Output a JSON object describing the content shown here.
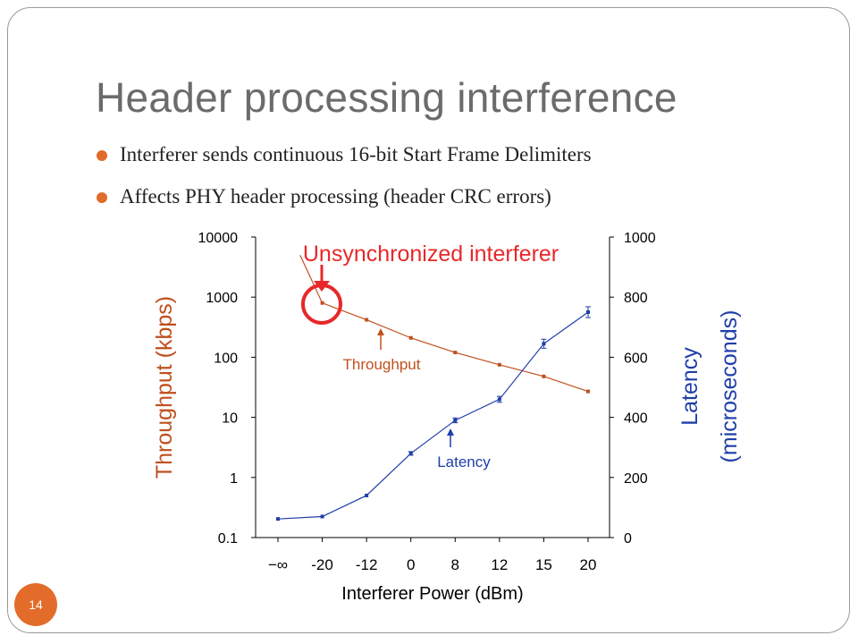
{
  "slide": {
    "title": "Header processing interference",
    "bullets": [
      "Interferer sends continuous 16-bit Start Frame Delimiters",
      "Affects PHY header processing (header CRC errors)"
    ],
    "page_number": "14",
    "accent_color": "#e36c2a"
  },
  "chart_data": {
    "type": "line",
    "xlabel": "Interferer Power (dBm)",
    "categories": [
      "−∞",
      "-20",
      "-12",
      "0",
      "8",
      "12",
      "15",
      "20"
    ],
    "y_left": {
      "label": "Throughput (kbps)",
      "scale": "log",
      "range": [
        0.1,
        10000
      ],
      "ticks": [
        "10000",
        "1000",
        "100",
        "10",
        "1",
        "0.1"
      ],
      "color": "#c0501f"
    },
    "y_right": {
      "label_line1": "Latency",
      "label_line2": "(microseconds)",
      "scale": "linear",
      "range": [
        0,
        1000
      ],
      "ticks": [
        "1000",
        "800",
        "600",
        "400",
        "200",
        "0"
      ],
      "color": "#1f3ea8"
    },
    "series": [
      {
        "name": "Throughput",
        "axis": "left",
        "color": "#c0501f",
        "x_index": [
          0.5,
          1,
          2,
          3,
          4,
          5,
          6,
          7
        ],
        "values": [
          5000,
          800,
          420,
          210,
          120,
          75,
          48,
          27
        ]
      },
      {
        "name": "Latency",
        "axis": "right",
        "color": "#1f3ea8",
        "x_index": [
          0,
          1,
          2,
          3,
          4,
          5,
          6,
          7
        ],
        "values": [
          62,
          70,
          140,
          280,
          390,
          460,
          645,
          750
        ],
        "error": [
          0,
          0,
          0,
          6,
          8,
          10,
          15,
          18
        ]
      }
    ],
    "annotations": {
      "highlight": "Unsynchronized interferer",
      "throughput_label": "Throughput",
      "latency_label": "Latency",
      "highlight_color": "#e8282a"
    },
    "grid": false
  }
}
